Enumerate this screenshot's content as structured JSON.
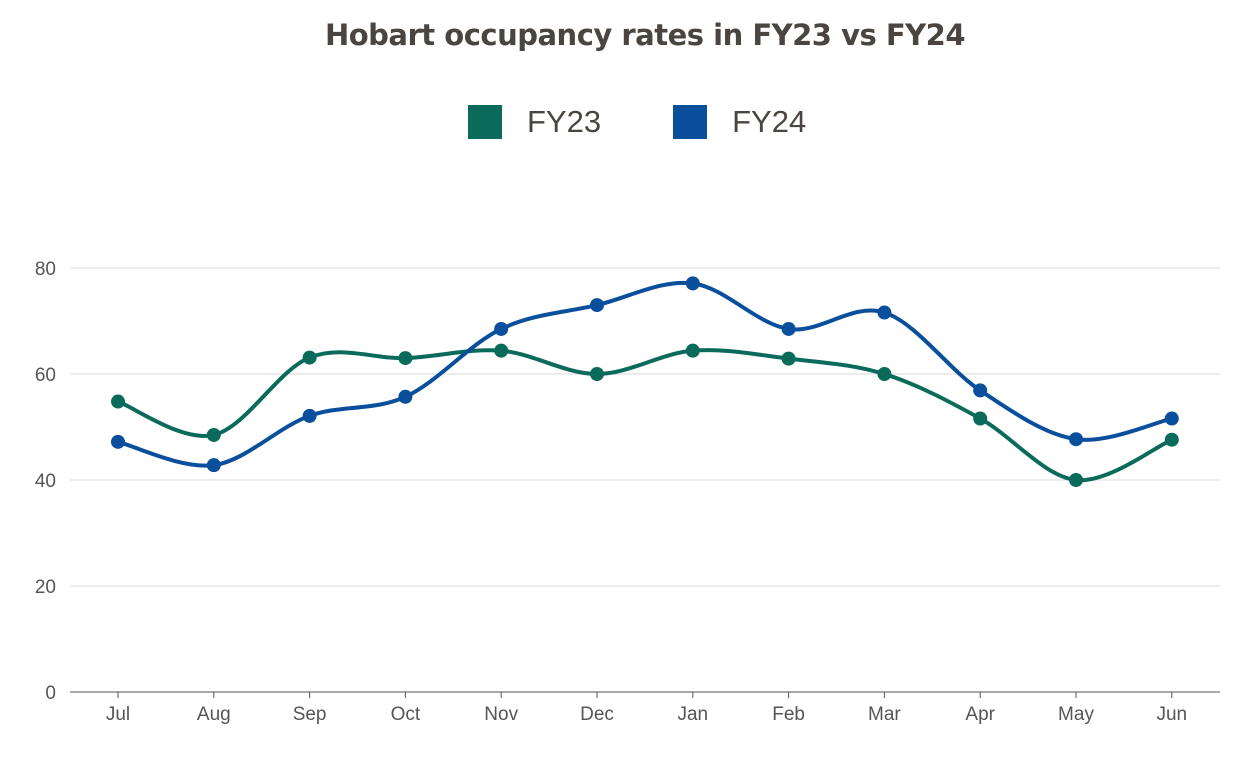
{
  "chart_data": {
    "type": "line",
    "title": "Hobart occupancy rates in FY23 vs FY24",
    "categories": [
      "Jul",
      "Aug",
      "Sep",
      "Oct",
      "Nov",
      "Dec",
      "Jan",
      "Feb",
      "Mar",
      "Apr",
      "May",
      "Jun"
    ],
    "series": [
      {
        "name": "FY23",
        "color": "#0b6b5a",
        "values": [
          54.8,
          48.5,
          63.1,
          63.0,
          64.4,
          60.0,
          64.4,
          62.9,
          60.0,
          51.6,
          40.0,
          47.6
        ]
      },
      {
        "name": "FY24",
        "color": "#0a4f9c",
        "values": [
          47.2,
          42.8,
          52.1,
          55.7,
          68.5,
          73.0,
          77.1,
          68.5,
          71.6,
          56.9,
          47.7,
          51.6
        ]
      }
    ],
    "ylim": [
      0,
      80
    ],
    "yticks": [
      0,
      20,
      40,
      60,
      80
    ],
    "xlabel": "",
    "ylabel": "",
    "grid": true,
    "legend": "top-center",
    "smooth": true
  }
}
